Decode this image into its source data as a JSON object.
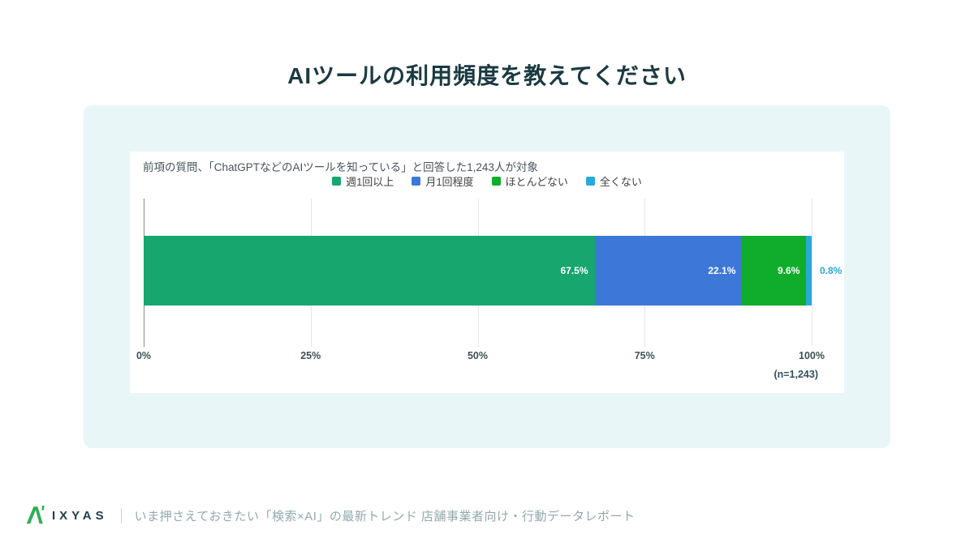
{
  "page": {
    "title": "AIツールの利用頻度を教えてください"
  },
  "chart_data": {
    "type": "bar",
    "variant": "horizontal-stacked",
    "subtitle": "前項の質問、「ChatGPTなどのAIツールを知っている」と回答した1,243人が対象",
    "series": [
      {
        "name": "週1回以上",
        "value": 67.5,
        "label": "67.5%",
        "color": "#17a66e"
      },
      {
        "name": "月1回程度",
        "value": 22.1,
        "label": "22.1%",
        "color": "#3d78d9"
      },
      {
        "name": "ほとんどない",
        "value": 9.6,
        "label": "9.6%",
        "color": "#0fad2b"
      },
      {
        "name": "全くない",
        "value": 0.8,
        "label": "0.8%",
        "color": "#29a9db"
      }
    ],
    "x_ticks": [
      "0%",
      "25%",
      "50%",
      "75%",
      "100%"
    ],
    "xlim": [
      0,
      100
    ],
    "grid": true,
    "legend_position": "top-center",
    "sample_note": "(n=1,243)"
  },
  "footer": {
    "brand": "IXYAS",
    "divider": "|",
    "text": "いま押さえておきたい「検索×AI」の最新トレンド 店舗事業者向け・行動データレポート"
  },
  "colors": {
    "title_color": "#1b3a42",
    "card_bg": "#e9f6f7",
    "brand_green": "#2fae54",
    "brand_navy": "#203d4e",
    "footer_text": "#92a9ae"
  }
}
